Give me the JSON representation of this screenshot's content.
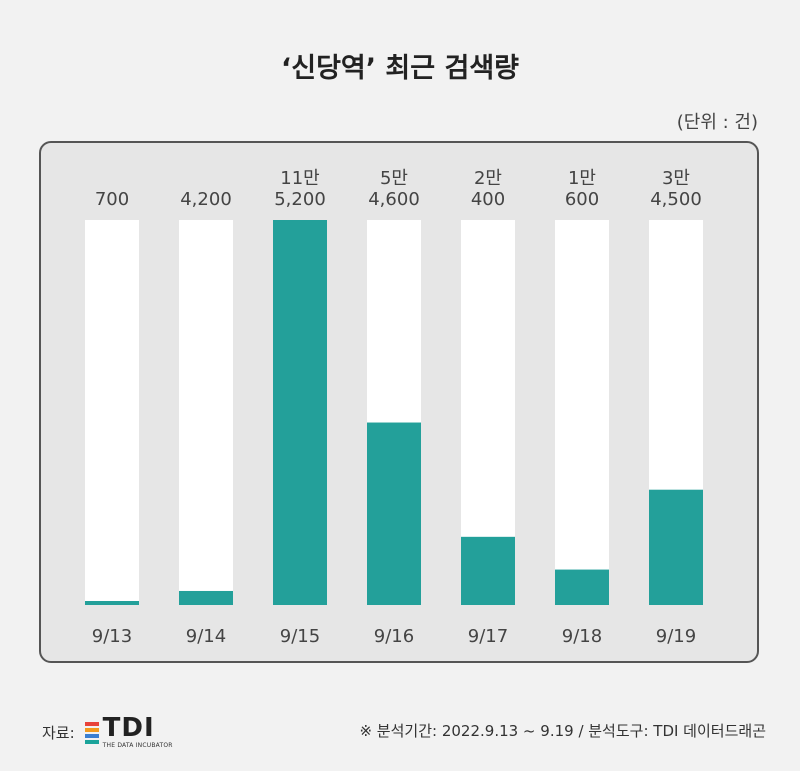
{
  "title": "‘신당역’ 최근 검색량",
  "unit": "(단위 : 건)",
  "footer": {
    "source_label": "자료:",
    "logo_text": "TDI",
    "logo_sub": "THE DATA INCUBATOR",
    "note": "※ 분석기간: 2022.9.13 ~ 9.19 / 분석도구: TDI 데이터드래곤"
  },
  "colors": {
    "bar": "#23a09a",
    "track": "#ffffff",
    "panel": "#e6e6e6"
  },
  "chart_data": {
    "type": "bar",
    "title": "‘신당역’ 최근 검색량",
    "categories": [
      "9/13",
      "9/14",
      "9/15",
      "9/16",
      "9/17",
      "9/18",
      "9/19"
    ],
    "values": [
      700,
      4200,
      115200,
      54600,
      20400,
      10600,
      34500
    ],
    "value_labels": [
      [
        "700"
      ],
      [
        "4,200"
      ],
      [
        "11만",
        "5,200"
      ],
      [
        "5만",
        "4,600"
      ],
      [
        "2만",
        "400"
      ],
      [
        "1만",
        "600"
      ],
      [
        "3만",
        "4,500"
      ]
    ],
    "ylim": [
      0,
      115200
    ],
    "grid": false,
    "legend": "none"
  }
}
